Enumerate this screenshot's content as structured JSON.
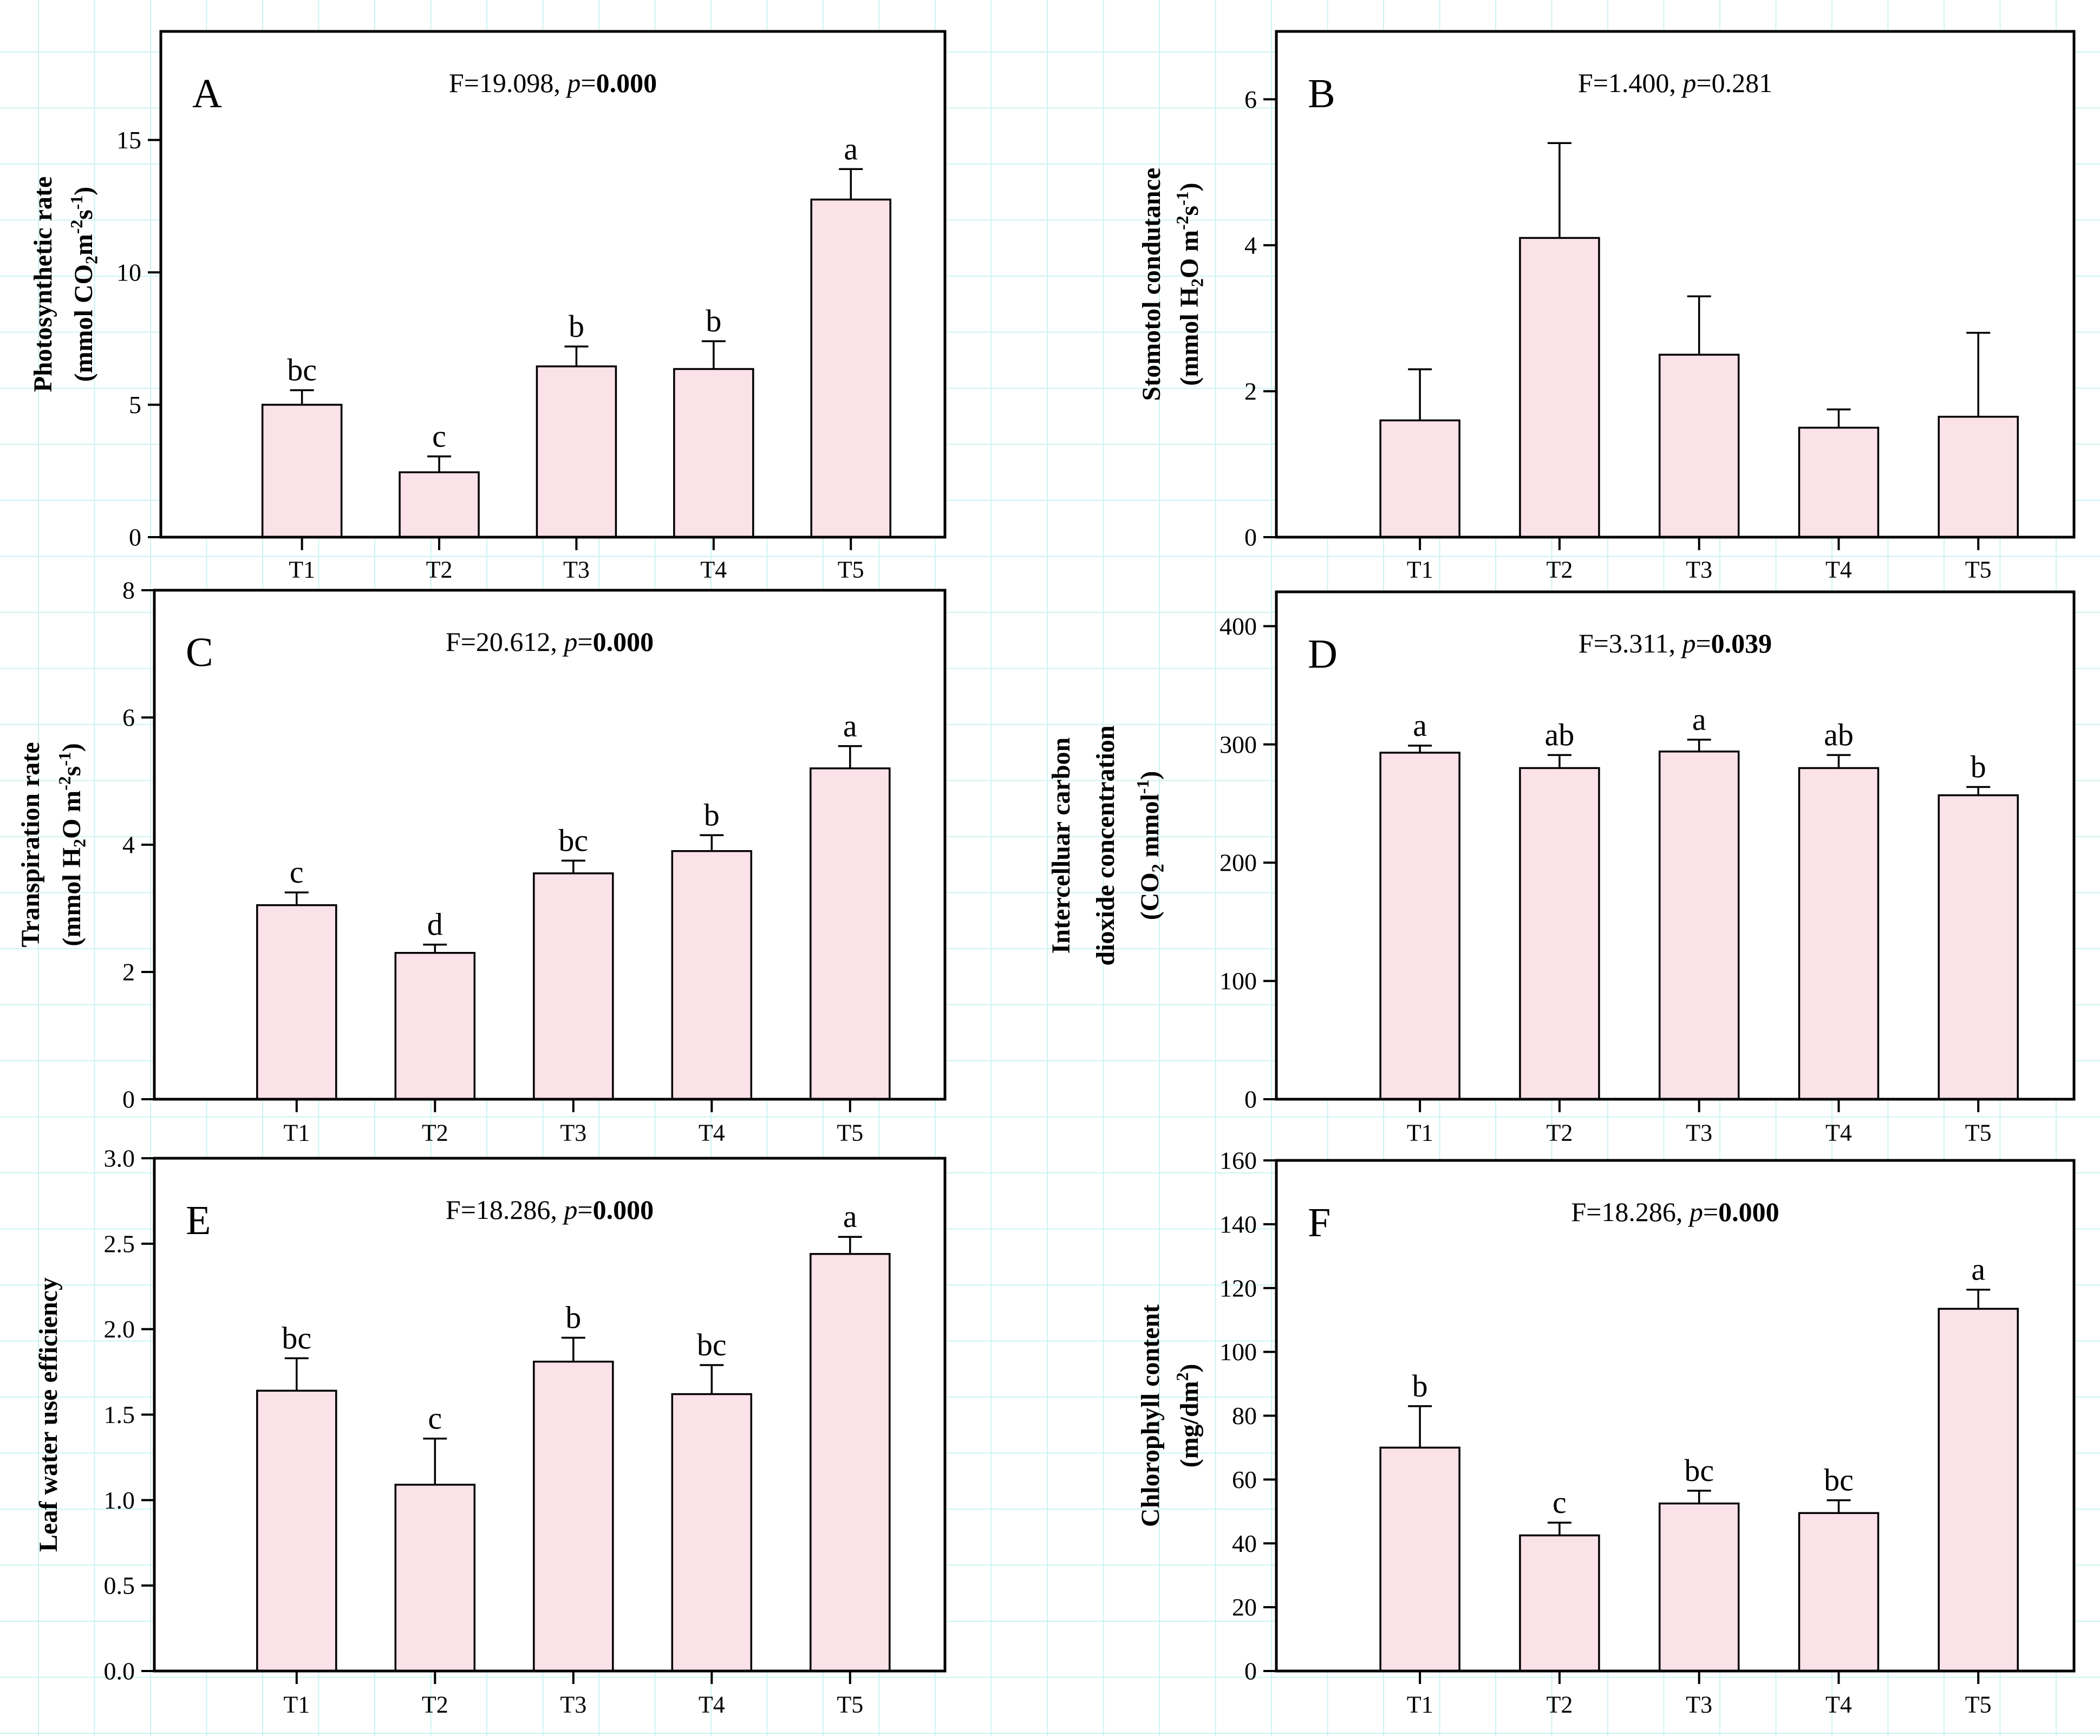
{
  "figure": {
    "background_grid_color": "#cdf3f2",
    "bar_fill_color": "#fbe1e8",
    "bar_border_color": "#000000",
    "categories": [
      "T1",
      "T2",
      "T3",
      "T4",
      "T5"
    ]
  },
  "chart_data": [
    {
      "type": "bar",
      "panel_letter": "A",
      "title": {
        "f": "F=19.098,",
        "p": "p",
        "value": "0.000",
        "value_bold": true
      },
      "ylabel_lines": [
        "Photosynthetic rate",
        "(mmol CO_2_m^-2^s^-1^)"
      ],
      "categories": [
        "T1",
        "T2",
        "T3",
        "T4",
        "T5"
      ],
      "values": [
        5.0,
        2.45,
        6.45,
        6.35,
        12.75
      ],
      "errors": [
        0.55,
        0.6,
        0.75,
        1.05,
        1.15
      ],
      "sig_letters": [
        "bc",
        "c",
        "b",
        "b",
        "a"
      ],
      "ylim": [
        0,
        19.1
      ],
      "yticks": [
        0,
        5,
        10,
        15
      ],
      "ytick_labels": [
        "0",
        "5",
        "10",
        "15"
      ],
      "grid": false,
      "legend": null
    },
    {
      "type": "bar",
      "panel_letter": "B",
      "title": {
        "f": "F=1.400,",
        "p": "p",
        "value": "0.281",
        "value_bold": false
      },
      "ylabel_lines": [
        "Stomotol condutance",
        "(mmol H_2_O m^-2^s^-1^)"
      ],
      "categories": [
        "T1",
        "T2",
        "T3",
        "T4",
        "T5"
      ],
      "values": [
        1.6,
        4.1,
        2.5,
        1.5,
        1.65
      ],
      "errors": [
        0.7,
        1.3,
        0.8,
        0.25,
        1.15
      ],
      "sig_letters": [
        "",
        "",
        "",
        "",
        ""
      ],
      "ylim": [
        0,
        6.93
      ],
      "yticks": [
        0,
        2,
        4,
        6
      ],
      "ytick_labels": [
        "0",
        "2",
        "4",
        "6"
      ],
      "grid": false,
      "legend": null
    },
    {
      "type": "bar",
      "panel_letter": "C",
      "title": {
        "f": "F=20.612,",
        "p": "p",
        "value": "0.000",
        "value_bold": true
      },
      "ylabel_lines": [
        "Transpiration rate",
        "(mmol H_2_O m^-2^s^-1^)"
      ],
      "categories": [
        "T1",
        "T2",
        "T3",
        "T4",
        "T5"
      ],
      "values": [
        3.05,
        2.3,
        3.55,
        3.9,
        5.2
      ],
      "errors": [
        0.2,
        0.13,
        0.2,
        0.25,
        0.35
      ],
      "sig_letters": [
        "c",
        "d",
        "bc",
        "b",
        "a"
      ],
      "ylim": [
        0,
        8
      ],
      "yticks": [
        0,
        2,
        4,
        6,
        8
      ],
      "ytick_labels": [
        "0",
        "2",
        "4",
        "6",
        "8"
      ],
      "grid": false,
      "legend": null
    },
    {
      "type": "bar",
      "panel_letter": "D",
      "title": {
        "f": "F=3.311,",
        "p": "p",
        "value": "0.039",
        "value_bold": true
      },
      "ylabel_lines": [
        "Intercelluar carbon",
        "dioxide concentration",
        "(CO_2_ mmol^-1^)"
      ],
      "categories": [
        "T1",
        "T2",
        "T3",
        "T4",
        "T5"
      ],
      "values": [
        293,
        280,
        294,
        280,
        257
      ],
      "errors": [
        6,
        11,
        10,
        11,
        7
      ],
      "sig_letters": [
        "a",
        "ab",
        "a",
        "ab",
        "b"
      ],
      "ylim": [
        0,
        429
      ],
      "yticks": [
        0,
        100,
        200,
        300,
        400
      ],
      "ytick_labels": [
        "0",
        "100",
        "200",
        "300",
        "400"
      ],
      "grid": false,
      "legend": null
    },
    {
      "type": "bar",
      "panel_letter": "E",
      "title": {
        "f": "F=18.286,",
        "p": "p",
        "value": "0.000",
        "value_bold": true
      },
      "ylabel_lines": [
        "Leaf water use efficiency"
      ],
      "categories": [
        "T1",
        "T2",
        "T3",
        "T4",
        "T5"
      ],
      "values": [
        1.64,
        1.09,
        1.81,
        1.62,
        2.44
      ],
      "errors": [
        0.19,
        0.27,
        0.14,
        0.17,
        0.1
      ],
      "sig_letters": [
        "bc",
        "c",
        "b",
        "bc",
        "a"
      ],
      "ylim": [
        0,
        3.0
      ],
      "yticks": [
        0,
        0.5,
        1.0,
        1.5,
        2.0,
        2.5,
        3.0
      ],
      "ytick_labels": [
        "0.0",
        "0.5",
        "1.0",
        "1.5",
        "2.0",
        "2.5",
        "3.0"
      ],
      "grid": false,
      "legend": null
    },
    {
      "type": "bar",
      "panel_letter": "F",
      "title": {
        "f": "F=18.286,",
        "p": "p",
        "value": "0.000",
        "value_bold": true
      },
      "ylabel_lines": [
        "Chlorophyll content",
        "(mg/dm^2^)"
      ],
      "categories": [
        "T1",
        "T2",
        "T3",
        "T4",
        "T5"
      ],
      "values": [
        70,
        42.5,
        52.5,
        49.5,
        113.5
      ],
      "errors": [
        13,
        4,
        4,
        4,
        6
      ],
      "sig_letters": [
        "b",
        "c",
        "bc",
        "bc",
        "a"
      ],
      "ylim": [
        0,
        160
      ],
      "yticks": [
        0,
        20,
        40,
        60,
        80,
        100,
        120,
        140,
        160
      ],
      "ytick_labels": [
        "0",
        "20",
        "40",
        "60",
        "80",
        "100",
        "120",
        "140",
        "160"
      ],
      "grid": false,
      "legend": null
    }
  ]
}
